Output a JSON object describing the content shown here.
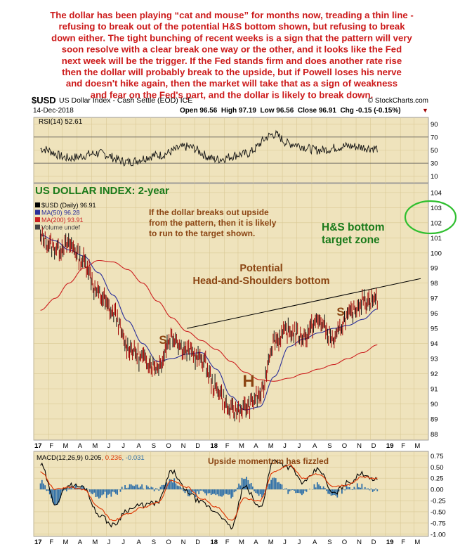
{
  "commentary": [
    "The dollar has been playing “cat and mouse” for months now, treading a thin line -",
    "refusing to break out of the potential H&S bottom shown, but refusing to break",
    "down either. The tight bunching of recent weeks is a sign that the pattern will very",
    "soon resolve with a clear break one way or the other, and it looks like the Fed",
    "next week will be the trigger. If the Fed stands firm and does another rate rise",
    "then the dollar will probably break to the upside, but if Powell loses his nerve",
    "and doesn't hike again, then the market will take that as a sign of weakness",
    "and fear on the Fed's part, and the dollar is likely to break down."
  ],
  "header": {
    "symbol": "$USD",
    "name": "US Dollar Index - Cash Settle (EOD)",
    "exchange": "ICE",
    "credit": "© StockCharts.com",
    "date": "14-Dec-2018",
    "ohlc": "Open 96.56  High 97.19  Low 96.56  Close 96.91  Chg -0.15 (-0.15%)",
    "arrow": "▼"
  },
  "colors": {
    "panel_bg": "#efe3bc",
    "price": "#a00000",
    "ma50": "#2b2f9a",
    "ma200": "#cc2020",
    "rsi": "#111111",
    "macd": "#000000",
    "signal": "#dd3300",
    "histogram": "#2e6fa8",
    "annotation": "#8b4513",
    "heading_green": "#1a7a1a",
    "target_circle": "#2fbf2f",
    "neckline": "#000000"
  },
  "chart_data": [
    {
      "type": "line",
      "name": "rsi_panel",
      "legend": "RSI(14) 52.61",
      "y_ticks": [
        "90",
        "70",
        "50",
        "30",
        "10"
      ],
      "ylim": [
        0,
        100
      ],
      "x": [
        "2017-01",
        "2017-03",
        "2017-05",
        "2017-07",
        "2017-09",
        "2017-11",
        "2018-01",
        "2018-03",
        "2018-05",
        "2018-06",
        "2018-08",
        "2018-10",
        "2018-12"
      ],
      "series": [
        {
          "name": "RSI(14)",
          "values": [
            52,
            38,
            45,
            32,
            42,
            55,
            36,
            44,
            74,
            60,
            50,
            56,
            52.61
          ]
        }
      ]
    },
    {
      "type": "line",
      "name": "price_panel",
      "title": "US DOLLAR INDEX: 2-year",
      "legend": [
        "$USD (Daily) 96.91",
        "MA(50) 96.28",
        "MA(200) 93.91",
        "Volume undef"
      ],
      "y_ticks": [
        "104",
        "103",
        "102",
        "101",
        "100",
        "99",
        "98",
        "97",
        "96",
        "95",
        "94",
        "93",
        "92",
        "91",
        "90",
        "89",
        "88"
      ],
      "ylim": [
        87.6,
        104.6
      ],
      "x_ticks": [
        "17",
        "F",
        "M",
        "A",
        "M",
        "J",
        "J",
        "A",
        "S",
        "O",
        "N",
        "D",
        "18",
        "F",
        "M",
        "A",
        "M",
        "J",
        "J",
        "A",
        "S",
        "O",
        "N",
        "D",
        "19",
        "F",
        "M"
      ],
      "x": [
        "2017-01",
        "2017-02",
        "2017-03",
        "2017-04",
        "2017-05",
        "2017-06",
        "2017-07",
        "2017-08",
        "2017-09",
        "2017-10",
        "2017-11",
        "2017-12",
        "2018-01",
        "2018-02",
        "2018-03",
        "2018-04",
        "2018-05",
        "2018-06",
        "2018-07",
        "2018-08",
        "2018-09",
        "2018-10",
        "2018-11",
        "2018-12"
      ],
      "series": [
        {
          "name": "$USD (Daily)",
          "values": [
            101.0,
            100.3,
            100.5,
            99.5,
            97.3,
            96.0,
            93.8,
            93.0,
            92.5,
            94.5,
            93.5,
            93.0,
            91.0,
            89.5,
            89.7,
            90.5,
            94.2,
            94.8,
            94.5,
            95.5,
            94.3,
            95.8,
            96.8,
            96.91
          ]
        },
        {
          "name": "MA(50)",
          "values": [
            101.2,
            100.8,
            100.2,
            99.8,
            98.7,
            97.2,
            95.5,
            94.0,
            92.8,
            93.0,
            93.3,
            93.4,
            92.3,
            90.5,
            89.6,
            89.8,
            91.8,
            93.8,
            94.3,
            94.7,
            95.0,
            95.2,
            95.6,
            96.28
          ]
        },
        {
          "name": "MA(200)",
          "values": [
            96.2,
            97.0,
            98.0,
            99.0,
            99.5,
            99.4,
            98.9,
            98.0,
            96.8,
            95.7,
            94.8,
            94.2,
            93.6,
            92.8,
            92.1,
            91.6,
            91.5,
            91.7,
            92.0,
            92.3,
            92.6,
            93.0,
            93.4,
            93.91
          ]
        }
      ],
      "neckline": {
        "start": [
          "2017-11",
          95.0
        ],
        "end": [
          "2019-03",
          98.3
        ]
      },
      "annotations": [
        "If the dollar breaks out upside",
        "from the pattern, then it is likely",
        "to run to the target shown.",
        "H&S bottom",
        "target zone",
        "Potential",
        "Head-and-Shoulders bottom",
        "S",
        "H",
        "S"
      ]
    },
    {
      "type": "line",
      "name": "macd_panel",
      "legend": {
        "label": "MACD(12,26,9)",
        "macd": "0.205",
        "signal": "0.236",
        "hist": "-0.031"
      },
      "annotation": "Upside momentum has fizzled",
      "y_ticks": [
        "0.75",
        "0.50",
        "0.25",
        "0.00",
        "-0.25",
        "-0.50",
        "-0.75",
        "-1.00"
      ],
      "ylim": [
        -1.05,
        0.85
      ],
      "x": [
        "2017-01",
        "2017-02",
        "2017-03",
        "2017-04",
        "2017-05",
        "2017-06",
        "2017-07",
        "2017-08",
        "2017-09",
        "2017-10",
        "2017-11",
        "2017-12",
        "2018-01",
        "2018-02",
        "2018-03",
        "2018-04",
        "2018-05",
        "2018-06",
        "2018-07",
        "2018-08",
        "2018-09",
        "2018-10",
        "2018-11",
        "2018-12"
      ],
      "series": [
        {
          "name": "MACD",
          "values": [
            0.55,
            -0.3,
            0.1,
            0.05,
            -0.55,
            -0.8,
            -0.45,
            -0.35,
            -0.3,
            0.4,
            -0.05,
            -0.3,
            -0.5,
            -0.85,
            0.05,
            -0.4,
            0.65,
            0.5,
            0.15,
            0.45,
            -0.1,
            0.15,
            0.35,
            0.205
          ]
        },
        {
          "name": "Signal",
          "values": [
            0.4,
            0.0,
            0.05,
            0.0,
            -0.4,
            -0.7,
            -0.55,
            -0.4,
            -0.3,
            0.2,
            0.05,
            -0.2,
            -0.4,
            -0.7,
            -0.2,
            -0.25,
            0.4,
            0.55,
            0.25,
            0.35,
            0.05,
            0.1,
            0.28,
            0.236
          ]
        }
      ]
    }
  ]
}
